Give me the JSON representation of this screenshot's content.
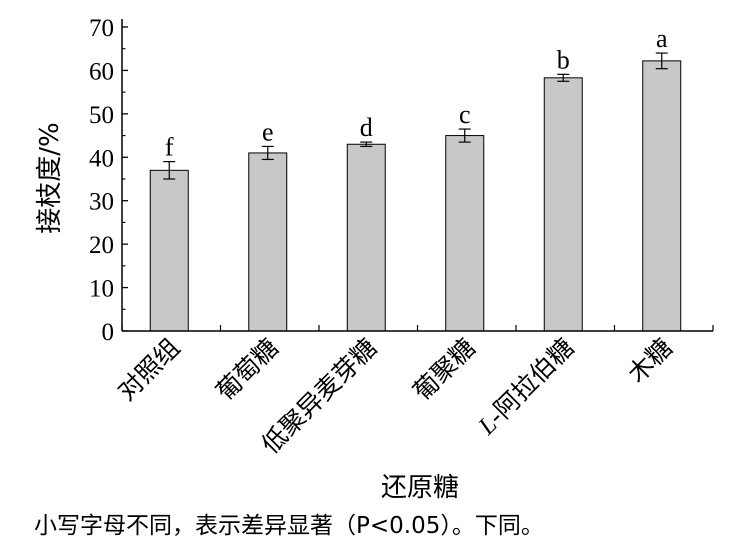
{
  "chart_data": {
    "type": "bar",
    "categories": [
      "对照组",
      "葡萄糖",
      "低聚异麦芽糖",
      "葡聚糖",
      "L-阿拉伯糖",
      "木糖"
    ],
    "values": [
      37,
      41,
      43,
      45,
      58.3,
      62.2
    ],
    "errors": [
      2.0,
      1.5,
      0.5,
      1.5,
      0.8,
      1.8
    ],
    "significance": [
      "f",
      "e",
      "d",
      "c",
      "b",
      "a"
    ],
    "ylabel": "接枝度/%",
    "xlabel": "还原糖",
    "ylim": [
      0,
      70
    ],
    "yticks": [
      0,
      10,
      20,
      30,
      40,
      50,
      60,
      70
    ],
    "bar_color": "#c8c8c8",
    "grid": false
  },
  "note": "小写字母不同，表示差异显著（P<0.05）。下同。"
}
